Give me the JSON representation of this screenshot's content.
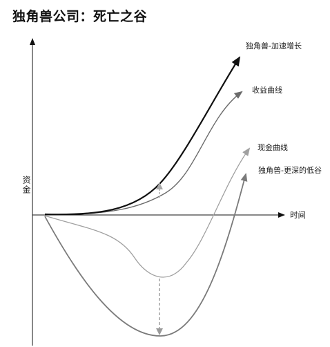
{
  "title": "独角兽公司：死亡之谷",
  "axes": {
    "y_label": "资金",
    "x_label": "时间",
    "color": "#111111"
  },
  "curves": [
    {
      "label": "独角兽-加速增长",
      "color": "#111111"
    },
    {
      "label": "收益曲线",
      "color": "#6b6b6b"
    },
    {
      "label": "现金曲线",
      "color": "#a0a0a0"
    },
    {
      "label": "独角兽-更深的低谷",
      "color": "#7a7a7a"
    }
  ],
  "gap_indicators": {
    "growth_gap_color": "#a8a8a8",
    "valley_gap_color": "#9a9a9a",
    "style": "dashed"
  }
}
